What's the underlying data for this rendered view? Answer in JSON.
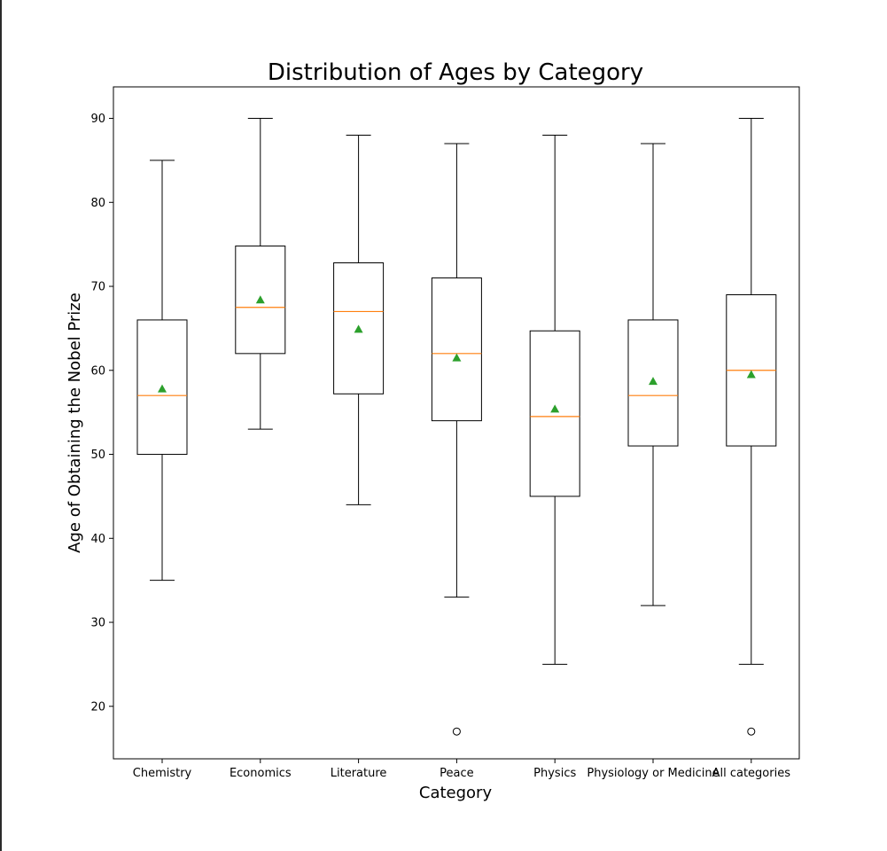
{
  "chart_data": {
    "type": "box",
    "title": "Distribution of Ages by Category",
    "xlabel": "Category",
    "ylabel": "Age of Obtaining the Nobel Prize",
    "ylim": [
      13.75,
      93.75
    ],
    "yticks": [
      20,
      30,
      40,
      50,
      60,
      70,
      80,
      90
    ],
    "categories": [
      "Chemistry",
      "Economics",
      "Literature",
      "Peace",
      "Physics",
      "Physiology or Medicine",
      "All categories"
    ],
    "boxes": [
      {
        "category": "Chemistry",
        "whisker_low": 35,
        "q1": 50,
        "median": 57,
        "q3": 66,
        "whisker_high": 85,
        "mean": 57.8,
        "outliers": []
      },
      {
        "category": "Economics",
        "whisker_low": 53,
        "q1": 62,
        "median": 67.5,
        "q3": 74.8,
        "whisker_high": 90,
        "mean": 68.4,
        "outliers": []
      },
      {
        "category": "Literature",
        "whisker_low": 44,
        "q1": 57.2,
        "median": 67,
        "q3": 72.8,
        "whisker_high": 88,
        "mean": 64.9,
        "outliers": []
      },
      {
        "category": "Peace",
        "whisker_low": 33,
        "q1": 54,
        "median": 62,
        "q3": 71,
        "whisker_high": 87,
        "mean": 61.5,
        "outliers": [
          17
        ]
      },
      {
        "category": "Physics",
        "whisker_low": 25,
        "q1": 45,
        "median": 54.5,
        "q3": 64.7,
        "whisker_high": 88,
        "mean": 55.4,
        "outliers": []
      },
      {
        "category": "Physiology or Medicine",
        "whisker_low": 32,
        "q1": 51,
        "median": 57,
        "q3": 66,
        "whisker_high": 87,
        "mean": 58.7,
        "outliers": []
      },
      {
        "category": "All categories",
        "whisker_low": 25,
        "q1": 51,
        "median": 60,
        "q3": 69,
        "whisker_high": 90,
        "mean": 59.5,
        "outliers": [
          17
        ]
      }
    ],
    "grid": false,
    "colors": {
      "box": "#000000",
      "median": "#ff7f0e",
      "mean": "#2ca02c",
      "outlier": "#000000"
    }
  }
}
